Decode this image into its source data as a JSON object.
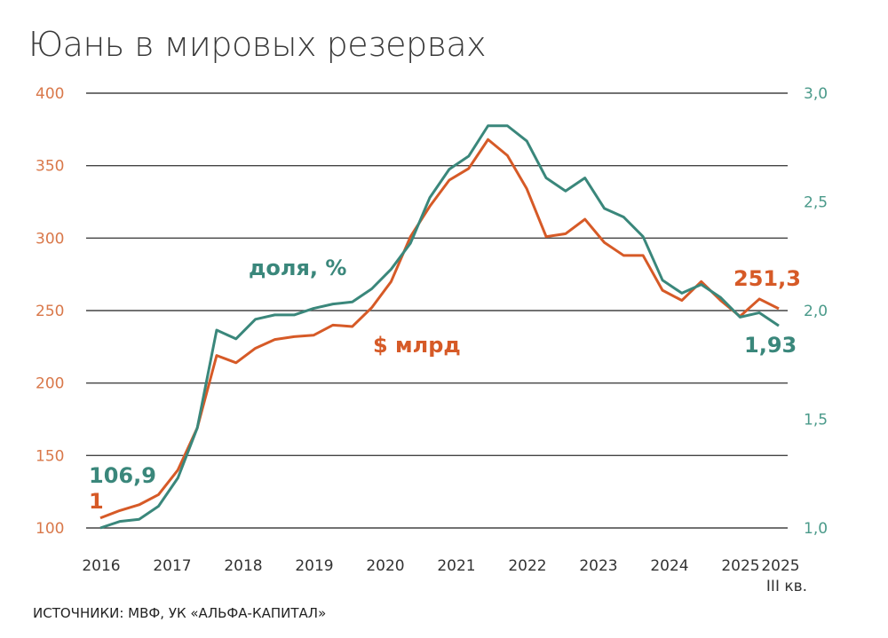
{
  "chart_data": {
    "type": "line",
    "title": "Юань в мировых резервах",
    "source": "ИСТОЧНИКИ: МВФ, УК «АЛЬФА-КАПИТАЛ»",
    "x_tick_labels": [
      "2016",
      "2017",
      "2018",
      "2019",
      "2020",
      "2021",
      "2022",
      "2023",
      "2024",
      "2025",
      "2025"
    ],
    "x_last_sublabel": "III кв.",
    "y_left": {
      "ticks": [
        "400",
        "350",
        "300",
        "250",
        "200",
        "150",
        "100"
      ],
      "range": [
        100,
        400
      ],
      "color": "#d9784a"
    },
    "y_right": {
      "ticks": [
        "3,0",
        "2,5",
        "2,0",
        "1,5",
        "1,0"
      ],
      "range": [
        1.0,
        3.0
      ],
      "color": "#4a9a8a"
    },
    "grid": true,
    "series": [
      {
        "name": "$ млрд",
        "axis": "left",
        "color": "#d65a27",
        "values": [
          106.9,
          112,
          116,
          123,
          140,
          169,
          219,
          214,
          224,
          230,
          232,
          233,
          240,
          239,
          252,
          270,
          301,
          322,
          340,
          348,
          368,
          357,
          334,
          301,
          303,
          313,
          297,
          288,
          288,
          264,
          257,
          270,
          257,
          246,
          258,
          251.3
        ]
      },
      {
        "name": "доля, %",
        "axis": "right",
        "color": "#3a877b",
        "values": [
          1.0,
          1.03,
          1.04,
          1.1,
          1.23,
          1.46,
          1.91,
          1.87,
          1.96,
          1.98,
          1.98,
          2.01,
          2.03,
          2.04,
          2.1,
          2.19,
          2.31,
          2.52,
          2.65,
          2.71,
          2.85,
          2.85,
          2.78,
          2.61,
          2.55,
          2.61,
          2.47,
          2.43,
          2.34,
          2.14,
          2.08,
          2.12,
          2.06,
          1.97,
          1.99,
          1.93
        ]
      }
    ],
    "annotations": {
      "share_label": "доля, %",
      "usd_label": "$ млрд",
      "usd_last": "251,3",
      "share_last": "1,93",
      "start_top": "106,9",
      "start_bottom": "1"
    }
  }
}
